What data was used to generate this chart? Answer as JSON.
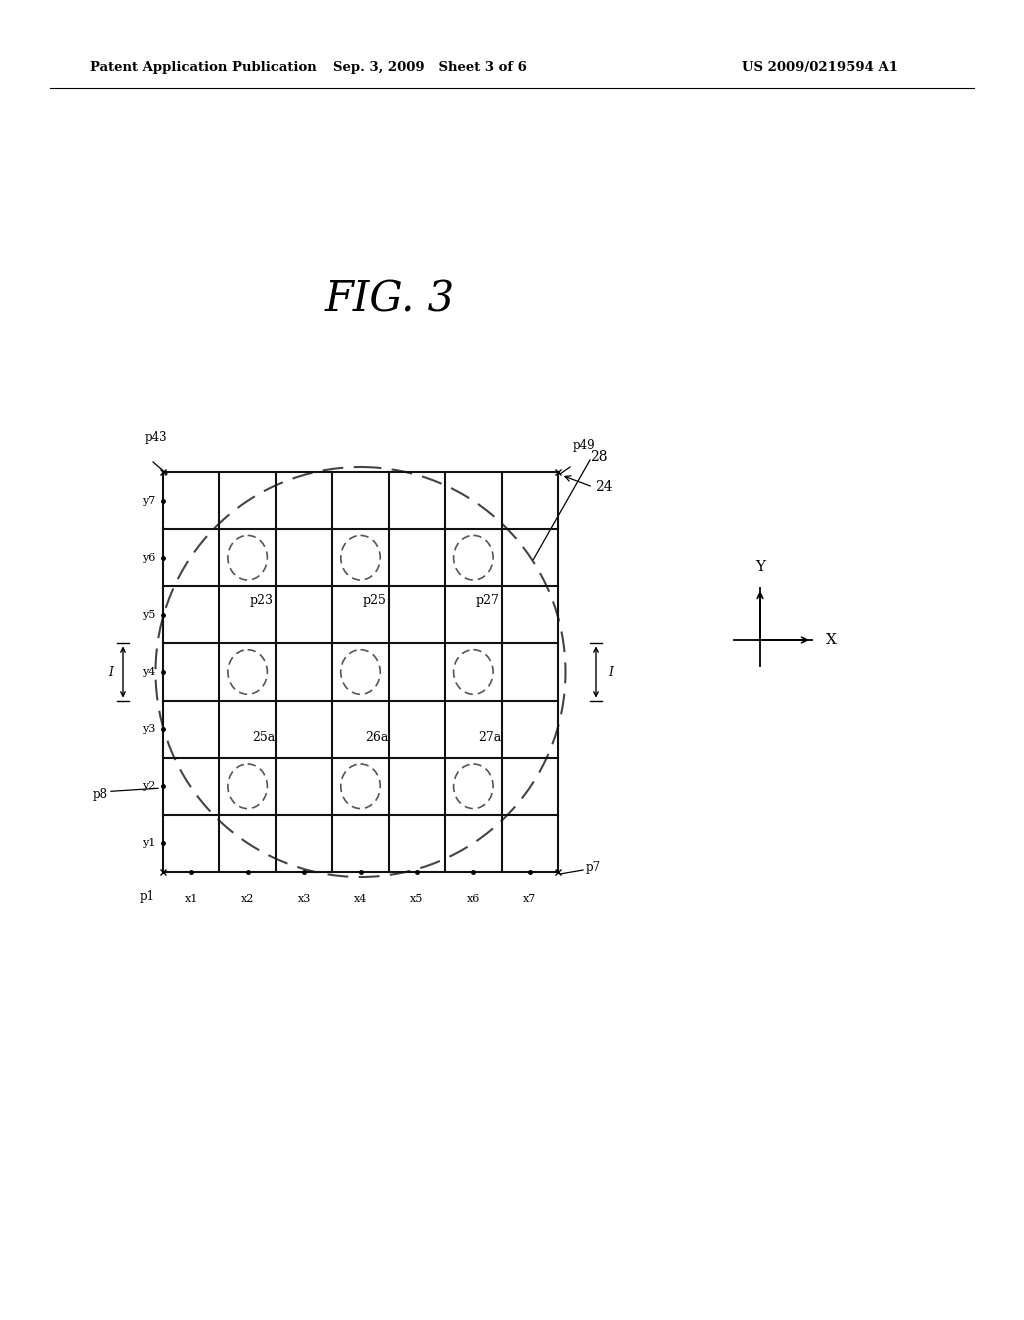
{
  "title": "FIG. 3",
  "header_left": "Patent Application Publication",
  "header_mid": "Sep. 3, 2009   Sheet 3 of 6",
  "header_right": "US 2009/0219594 A1",
  "background_color": "#ffffff",
  "grid_color": "#111111",
  "x_labels": [
    "x1",
    "x2",
    "x3",
    "x4",
    "x5",
    "x6",
    "x7"
  ],
  "y_labels": [
    "y1",
    "y2",
    "y3",
    "y4",
    "y5",
    "y6",
    "y7"
  ],
  "circles_dashed_cols": [
    2,
    4,
    6
  ],
  "circles_dashed_rows": [
    2,
    4,
    6
  ]
}
